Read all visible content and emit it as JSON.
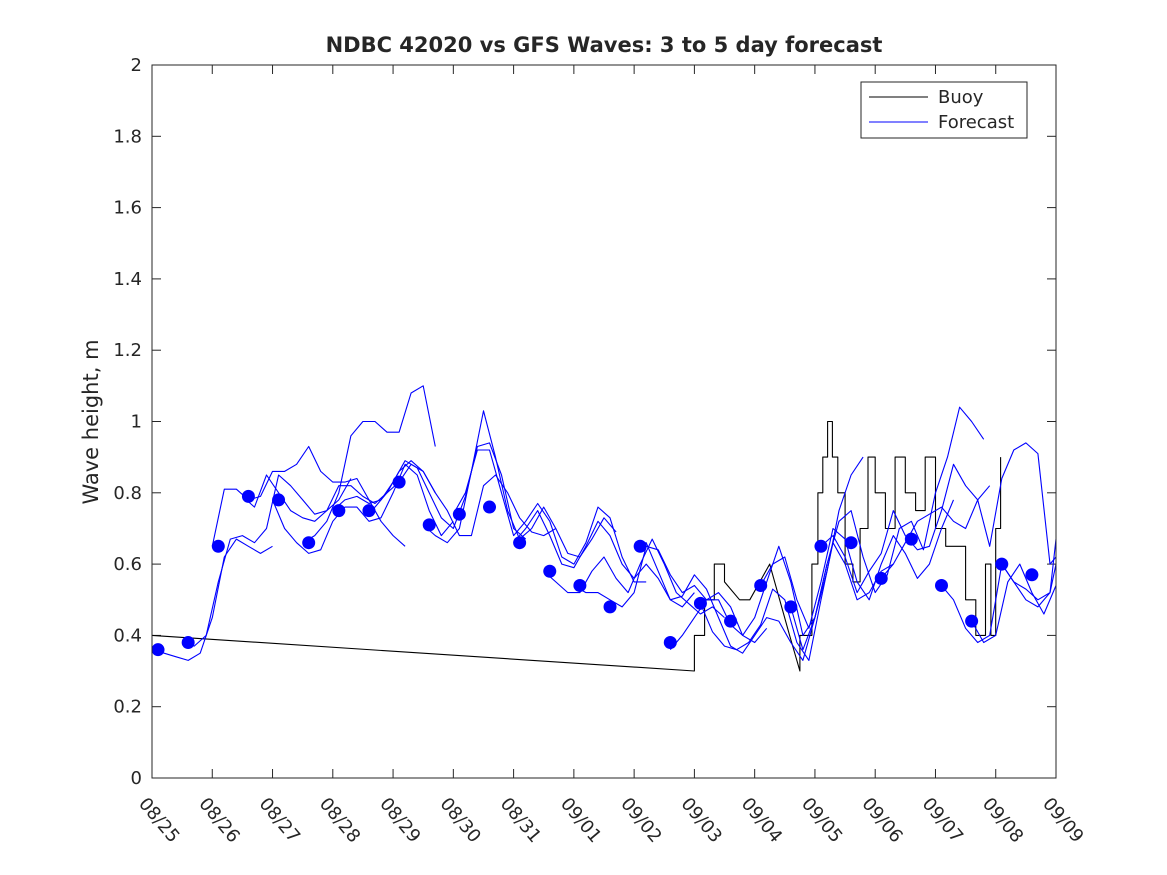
{
  "chart_data": {
    "type": "line",
    "title": "NDBC 42020 vs GFS Waves: 3 to 5 day forecast",
    "xlabel": "",
    "ylabel": "Wave height, m",
    "xlim": [
      0,
      15
    ],
    "ylim": [
      0,
      2
    ],
    "x_tick_labels": [
      "08/25",
      "08/26",
      "08/27",
      "08/28",
      "08/29",
      "08/30",
      "08/31",
      "09/01",
      "09/02",
      "09/03",
      "09/04",
      "09/05",
      "09/06",
      "09/07",
      "09/08",
      "09/09"
    ],
    "y_ticks": [
      0,
      0.2,
      0.4,
      0.6,
      0.8,
      1,
      1.2,
      1.4,
      1.6,
      1.8,
      2
    ],
    "y_tick_labels": [
      "0",
      "0.2",
      "0.4",
      "0.6",
      "0.8",
      "1",
      "1.2",
      "1.4",
      "1.6",
      "1.8",
      "2"
    ],
    "grid": false,
    "legend": {
      "location": "top-right",
      "entries": [
        "Buoy",
        "Forecast"
      ]
    },
    "colors": {
      "buoy": "#000000",
      "forecast": "#0000ff",
      "axes": "#262626"
    },
    "series": [
      {
        "name": "Buoy",
        "style": "line",
        "x": [
          0,
          9.0,
          9.0,
          9.17,
          9.17,
          9.33,
          9.33,
          9.5,
          9.5,
          9.75,
          9.92,
          10.25,
          10.25,
          10.58,
          10.58,
          10.75,
          10.75,
          10.95,
          10.95,
          11.05,
          11.05,
          11.13,
          11.13,
          11.21,
          11.21,
          11.29,
          11.29,
          11.38,
          11.38,
          11.5,
          11.5,
          11.63,
          11.63,
          11.75,
          11.75,
          11.88,
          11.88,
          12.0,
          12.0,
          12.17,
          12.17,
          12.33,
          12.33,
          12.5,
          12.5,
          12.67,
          12.67,
          12.83,
          12.83,
          13.0,
          13.0,
          13.17,
          13.17,
          13.5,
          13.5,
          13.67,
          13.67,
          13.83,
          13.83,
          13.92,
          13.92,
          14.0,
          14.0,
          14.08,
          14.08
        ],
        "y": [
          0.4,
          0.3,
          0.4,
          0.4,
          0.5,
          0.5,
          0.6,
          0.6,
          0.55,
          0.5,
          0.5,
          0.6,
          0.6,
          0.4,
          0.4,
          0.3,
          0.4,
          0.4,
          0.6,
          0.6,
          0.8,
          0.8,
          0.9,
          0.9,
          1.0,
          1.0,
          0.9,
          0.9,
          0.8,
          0.8,
          0.6,
          0.6,
          0.55,
          0.55,
          0.7,
          0.7,
          0.9,
          0.9,
          0.8,
          0.8,
          0.7,
          0.7,
          0.9,
          0.9,
          0.8,
          0.8,
          0.75,
          0.75,
          0.9,
          0.9,
          0.7,
          0.7,
          0.65,
          0.65,
          0.5,
          0.5,
          0.4,
          0.4,
          0.6,
          0.6,
          0.4,
          0.4,
          0.7,
          0.7,
          0.9
        ]
      },
      {
        "name": "Forecast run 1",
        "style": "line",
        "x": [
          0.0,
          0.2,
          0.4,
          0.6,
          0.8,
          1.0,
          1.2,
          1.4,
          1.6,
          1.8,
          2.0
        ],
        "y": [
          0.36,
          0.35,
          0.34,
          0.33,
          0.35,
          0.45,
          0.62,
          0.67,
          0.65,
          0.63,
          0.65
        ]
      },
      {
        "name": "Forecast run 2",
        "style": "line",
        "x": [
          0.5,
          0.7,
          0.9,
          1.1,
          1.3,
          1.5,
          1.7,
          1.9,
          2.1,
          2.3,
          2.5,
          2.7,
          2.9,
          3.1,
          3.3
        ],
        "y": [
          0.38,
          0.37,
          0.4,
          0.55,
          0.67,
          0.68,
          0.66,
          0.7,
          0.85,
          0.82,
          0.78,
          0.74,
          0.75,
          0.78,
          0.84
        ]
      },
      {
        "name": "Forecast run 3",
        "style": "line",
        "x": [
          1.0,
          1.2,
          1.4,
          1.6,
          1.8,
          2.0,
          2.2,
          2.4,
          2.6,
          2.8,
          3.0,
          3.2,
          3.4,
          3.6,
          3.8,
          4.0,
          4.2
        ],
        "y": [
          0.65,
          0.81,
          0.81,
          0.78,
          0.79,
          0.86,
          0.86,
          0.88,
          0.93,
          0.86,
          0.83,
          0.83,
          0.84,
          0.78,
          0.72,
          0.68,
          0.65
        ]
      },
      {
        "name": "Forecast run 4",
        "style": "line",
        "x": [
          1.5,
          1.7,
          1.9,
          2.1,
          2.3,
          2.5,
          2.7,
          2.9,
          3.1,
          3.3,
          3.5,
          3.7,
          3.9,
          4.1,
          4.3,
          4.5,
          4.7
        ],
        "y": [
          0.79,
          0.76,
          0.85,
          0.8,
          0.75,
          0.73,
          0.72,
          0.75,
          0.82,
          0.82,
          0.79,
          0.77,
          0.8,
          0.86,
          0.89,
          0.86,
          0.8
        ]
      },
      {
        "name": "Forecast run 5",
        "style": "line",
        "x": [
          2.0,
          2.2,
          2.4,
          2.6,
          2.8,
          3.0,
          3.2,
          3.4,
          3.6,
          3.8,
          4.0,
          4.2,
          4.4,
          4.6,
          4.8,
          5.0
        ],
        "y": [
          0.78,
          0.7,
          0.66,
          0.63,
          0.64,
          0.72,
          0.76,
          0.76,
          0.72,
          0.73,
          0.8,
          0.88,
          0.85,
          0.75,
          0.68,
          0.72
        ]
      },
      {
        "name": "Forecast run 6",
        "style": "line",
        "x": [
          2.5,
          2.7,
          2.9,
          3.1,
          3.3,
          3.5,
          3.7,
          3.9,
          4.1,
          4.3,
          4.5,
          4.7
        ],
        "y": [
          0.66,
          0.68,
          0.72,
          0.8,
          0.96,
          1.0,
          1.0,
          0.97,
          0.97,
          1.08,
          1.1,
          0.93
        ]
      },
      {
        "name": "Forecast run 7",
        "style": "line",
        "x": [
          3.0,
          3.2,
          3.4,
          3.6,
          3.8,
          4.0,
          4.2,
          4.4,
          4.6,
          4.8,
          5.0,
          5.2,
          5.4,
          5.6,
          5.8,
          6.0,
          6.2
        ],
        "y": [
          0.75,
          0.78,
          0.79,
          0.77,
          0.78,
          0.83,
          0.89,
          0.87,
          0.8,
          0.73,
          0.7,
          0.79,
          0.93,
          0.94,
          0.85,
          0.7,
          0.67
        ]
      },
      {
        "name": "Forecast run 8",
        "style": "line",
        "x": [
          3.5,
          3.7,
          3.9,
          4.1,
          4.3,
          4.5,
          4.7,
          4.9,
          5.1,
          5.3,
          5.5,
          5.7,
          5.9,
          6.1,
          6.3,
          6.5,
          6.7
        ],
        "y": [
          0.75,
          0.76,
          0.8,
          0.83,
          0.88,
          0.86,
          0.8,
          0.75,
          0.68,
          0.68,
          0.82,
          0.85,
          0.8,
          0.73,
          0.69,
          0.68,
          0.7
        ]
      },
      {
        "name": "Forecast run 9",
        "style": "line",
        "x": [
          4.5,
          4.7,
          4.9,
          5.1,
          5.3,
          5.5,
          5.7,
          5.9,
          6.1,
          6.3,
          6.5,
          6.7,
          6.9,
          7.1,
          7.3,
          7.5,
          7.7
        ],
        "y": [
          0.71,
          0.68,
          0.66,
          0.7,
          0.86,
          1.03,
          0.9,
          0.75,
          0.67,
          0.7,
          0.76,
          0.7,
          0.63,
          0.62,
          0.67,
          0.73,
          0.69
        ]
      },
      {
        "name": "Forecast run 10",
        "style": "line",
        "x": [
          5.0,
          5.2,
          5.4,
          5.6,
          5.8,
          6.0,
          6.2,
          6.4,
          6.6,
          6.8,
          7.0,
          7.2,
          7.4,
          7.6,
          7.8,
          8.0,
          8.2
        ],
        "y": [
          0.74,
          0.8,
          0.92,
          0.92,
          0.8,
          0.68,
          0.72,
          0.77,
          0.72,
          0.62,
          0.6,
          0.66,
          0.76,
          0.73,
          0.62,
          0.55,
          0.55
        ]
      },
      {
        "name": "Forecast run 11",
        "style": "line",
        "x": [
          6.0,
          6.2,
          6.4,
          6.6,
          6.8,
          7.0,
          7.2,
          7.4,
          7.6,
          7.8,
          8.0,
          8.2,
          8.4,
          8.6,
          8.8,
          9.0
        ],
        "y": [
          0.66,
          0.7,
          0.75,
          0.68,
          0.6,
          0.59,
          0.65,
          0.72,
          0.68,
          0.6,
          0.56,
          0.6,
          0.56,
          0.5,
          0.48,
          0.52
        ]
      },
      {
        "name": "Forecast run 12",
        "style": "line",
        "x": [
          6.5,
          6.7,
          6.9,
          7.1,
          7.3,
          7.5,
          7.7,
          7.9,
          8.1,
          8.3,
          8.5,
          8.7,
          8.9,
          9.1,
          9.3,
          9.5
        ],
        "y": [
          0.58,
          0.55,
          0.52,
          0.52,
          0.58,
          0.62,
          0.56,
          0.52,
          0.6,
          0.67,
          0.6,
          0.52,
          0.49,
          0.46,
          0.48,
          0.45
        ]
      },
      {
        "name": "Forecast run 13",
        "style": "line",
        "x": [
          7.0,
          7.2,
          7.4,
          7.6,
          7.8,
          8.0,
          8.2,
          8.4,
          8.6,
          8.8,
          9.0,
          9.2,
          9.4,
          9.6,
          9.8,
          10.0,
          10.2
        ],
        "y": [
          0.54,
          0.52,
          0.52,
          0.5,
          0.48,
          0.52,
          0.65,
          0.64,
          0.57,
          0.52,
          0.54,
          0.5,
          0.52,
          0.48,
          0.4,
          0.38,
          0.42
        ]
      },
      {
        "name": "Forecast run 14",
        "style": "line",
        "x": [
          8.0,
          8.2,
          8.4,
          8.6,
          8.8,
          9.0,
          9.2,
          9.4,
          9.6,
          9.8,
          10.0,
          10.2,
          10.4,
          10.6,
          10.8,
          11.0,
          11.2
        ],
        "y": [
          0.65,
          0.66,
          0.58,
          0.5,
          0.51,
          0.57,
          0.53,
          0.45,
          0.37,
          0.35,
          0.4,
          0.45,
          0.44,
          0.38,
          0.33,
          0.45,
          0.6
        ]
      },
      {
        "name": "Forecast run 15",
        "style": "line",
        "x": [
          8.6,
          8.8,
          9.0,
          9.2,
          9.4,
          9.6,
          9.8,
          10.0,
          10.2,
          10.4,
          10.6,
          10.8,
          11.0,
          11.2,
          11.4,
          11.6,
          11.8
        ],
        "y": [
          0.36,
          0.4,
          0.45,
          0.5,
          0.5,
          0.43,
          0.4,
          0.45,
          0.55,
          0.65,
          0.55,
          0.4,
          0.45,
          0.58,
          0.75,
          0.85,
          0.9
        ]
      },
      {
        "name": "Forecast run 16",
        "style": "line",
        "x": [
          9.1,
          9.3,
          9.5,
          9.7,
          9.9,
          10.1,
          10.3,
          10.5,
          10.7,
          10.9,
          11.1,
          11.3,
          11.5,
          11.7,
          11.9,
          12.1,
          12.3
        ],
        "y": [
          0.49,
          0.41,
          0.37,
          0.36,
          0.38,
          0.43,
          0.53,
          0.5,
          0.38,
          0.33,
          0.5,
          0.66,
          0.6,
          0.5,
          0.52,
          0.58,
          0.6
        ]
      },
      {
        "name": "Forecast run 17",
        "style": "line",
        "x": [
          10.1,
          10.3,
          10.5,
          10.7,
          10.9,
          11.1,
          11.3,
          11.5,
          11.7,
          11.9,
          12.1,
          12.3,
          12.5,
          12.7,
          12.9,
          13.1,
          13.3
        ],
        "y": [
          0.54,
          0.6,
          0.62,
          0.5,
          0.42,
          0.55,
          0.7,
          0.67,
          0.55,
          0.5,
          0.6,
          0.68,
          0.63,
          0.56,
          0.6,
          0.7,
          0.78
        ]
      },
      {
        "name": "Forecast run 18",
        "style": "line",
        "x": [
          10.6,
          10.8,
          11.0,
          11.2,
          11.4,
          11.6,
          11.8,
          12.0,
          12.2,
          12.4,
          12.6,
          12.8,
          13.0,
          13.2,
          13.4,
          13.6,
          13.8
        ],
        "y": [
          0.48,
          0.36,
          0.45,
          0.6,
          0.72,
          0.75,
          0.62,
          0.52,
          0.57,
          0.7,
          0.72,
          0.64,
          0.8,
          0.9,
          1.04,
          1.0,
          0.95
        ]
      },
      {
        "name": "Forecast run 19",
        "style": "line",
        "x": [
          11.1,
          11.3,
          11.5,
          11.7,
          11.9,
          12.1,
          12.3,
          12.5,
          12.7,
          12.9,
          13.1,
          13.3,
          13.5,
          13.7,
          13.9
        ],
        "y": [
          0.65,
          0.68,
          0.62,
          0.52,
          0.58,
          0.63,
          0.75,
          0.68,
          0.64,
          0.65,
          0.75,
          0.88,
          0.82,
          0.78,
          0.82
        ]
      },
      {
        "name": "Forecast run 20",
        "style": "line",
        "x": [
          12.1,
          12.3,
          12.5,
          12.7,
          12.9,
          13.1,
          13.3,
          13.5,
          13.7,
          13.9,
          14.1,
          14.3,
          14.5,
          14.7,
          14.9,
          15.0
        ],
        "y": [
          0.56,
          0.6,
          0.66,
          0.72,
          0.74,
          0.76,
          0.72,
          0.7,
          0.78,
          0.65,
          0.84,
          0.92,
          0.94,
          0.91,
          0.6,
          0.62
        ]
      },
      {
        "name": "Forecast run 21",
        "style": "line",
        "x": [
          13.1,
          13.3,
          13.5,
          13.7,
          13.9,
          14.1,
          14.3,
          14.5,
          14.7,
          14.9,
          15.0
        ],
        "y": [
          0.54,
          0.5,
          0.42,
          0.38,
          0.4,
          0.6,
          0.55,
          0.5,
          0.48,
          0.52,
          0.6
        ]
      },
      {
        "name": "Forecast run 22",
        "style": "line",
        "x": [
          13.6,
          13.8,
          14.0,
          14.2,
          14.4,
          14.6,
          14.8,
          15.0
        ],
        "y": [
          0.44,
          0.38,
          0.4,
          0.55,
          0.6,
          0.52,
          0.46,
          0.54
        ]
      },
      {
        "name": "Forecast run 23",
        "style": "line",
        "x": [
          14.1,
          14.3,
          14.5,
          14.7,
          14.9,
          15.0
        ],
        "y": [
          0.6,
          0.55,
          0.53,
          0.5,
          0.52,
          0.67
        ]
      },
      {
        "name": "Forecast initial",
        "style": "markers",
        "x": [
          0.1,
          0.6,
          1.1,
          1.6,
          2.1,
          2.6,
          3.1,
          3.6,
          4.1,
          4.6,
          5.1,
          5.6,
          6.1,
          6.6,
          7.1,
          7.6,
          8.1,
          8.6,
          9.1,
          9.6,
          10.1,
          10.6,
          11.1,
          11.6,
          12.1,
          12.6,
          13.1,
          13.6,
          14.1,
          14.6
        ],
        "y": [
          0.36,
          0.38,
          0.65,
          0.79,
          0.78,
          0.66,
          0.75,
          0.75,
          0.83,
          0.71,
          0.74,
          0.76,
          0.66,
          0.58,
          0.54,
          0.48,
          0.65,
          0.38,
          0.49,
          0.44,
          0.54,
          0.48,
          0.65,
          0.66,
          0.56,
          0.67,
          0.54,
          0.44,
          0.6,
          0.57
        ]
      }
    ]
  }
}
